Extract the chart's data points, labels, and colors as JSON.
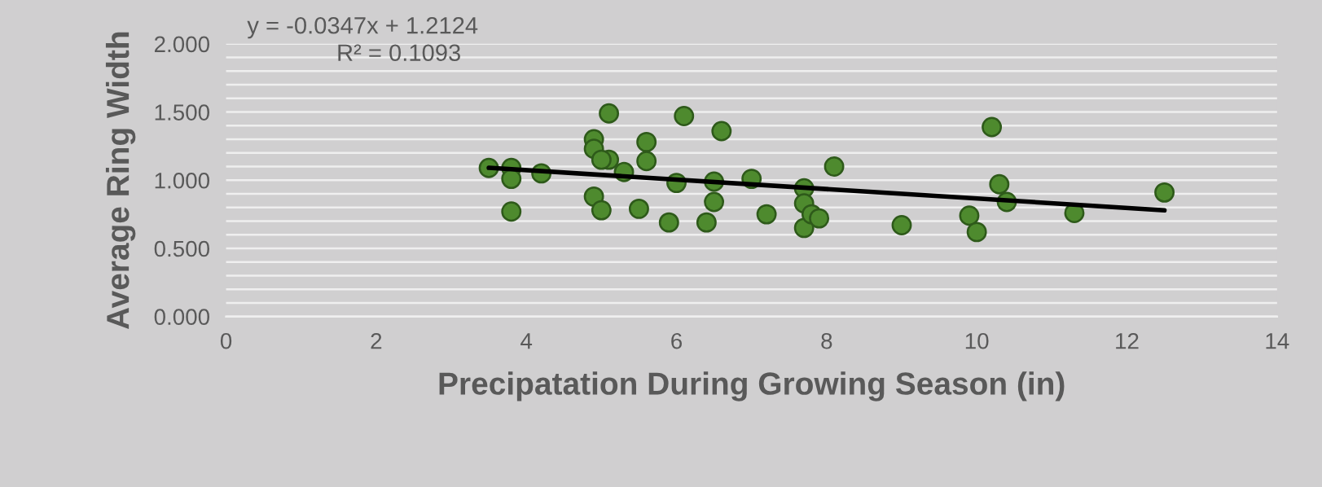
{
  "chart_data": {
    "type": "scatter",
    "xlabel": "Precipatation During Growing Season (in)",
    "ylabel": "Average Ring Width",
    "annotations": [
      "y = -0.0347x + 1.2124",
      "R² = 0.1093"
    ],
    "xlim": [
      0,
      14
    ],
    "xticks": [
      0,
      2,
      4,
      6,
      8,
      10,
      12,
      14
    ],
    "ylim": [
      0,
      2
    ],
    "yticks": [
      {
        "value": 0,
        "label": "0.000"
      },
      {
        "value": 0.1,
        "label": null
      },
      {
        "value": 0.2,
        "label": null
      },
      {
        "value": 0.3,
        "label": null
      },
      {
        "value": 0.4,
        "label": null
      },
      {
        "value": 0.5,
        "label": "0.500"
      },
      {
        "value": 0.6,
        "label": null
      },
      {
        "value": 0.7,
        "label": null
      },
      {
        "value": 0.8,
        "label": null
      },
      {
        "value": 0.9,
        "label": null
      },
      {
        "value": 1.0,
        "label": "1.000"
      },
      {
        "value": 1.1,
        "label": null
      },
      {
        "value": 1.2,
        "label": null
      },
      {
        "value": 1.3,
        "label": null
      },
      {
        "value": 1.4,
        "label": null
      },
      {
        "value": 1.5,
        "label": "1.500"
      },
      {
        "value": 1.6,
        "label": null
      },
      {
        "value": 1.7,
        "label": null
      },
      {
        "value": 1.8,
        "label": null
      },
      {
        "value": 1.9,
        "label": null
      },
      {
        "value": 2.0,
        "label": "2.000"
      }
    ],
    "grid": "y",
    "legend": false,
    "marker": "circle",
    "series": [
      {
        "color": "#4e8a2e",
        "x": [
          3.5,
          3.8,
          3.8,
          3.8,
          4.2,
          4.9,
          4.9,
          5.1,
          5.1,
          5.0,
          4.9,
          5.0,
          5.3,
          5.6,
          5.6,
          5.5,
          6.1,
          6.0,
          5.9,
          6.5,
          6.5,
          6.4,
          6.6,
          7.0,
          7.2,
          7.7,
          7.7,
          7.7,
          7.8,
          7.9,
          8.1,
          9.0,
          9.9,
          10.0,
          10.2,
          10.3,
          10.4,
          11.3,
          12.5
        ],
        "values": [
          1.09,
          1.09,
          1.01,
          0.77,
          1.05,
          1.3,
          1.23,
          1.49,
          1.15,
          1.15,
          0.88,
          0.78,
          1.06,
          1.28,
          1.14,
          0.79,
          1.47,
          0.98,
          0.69,
          0.99,
          0.84,
          0.69,
          1.36,
          1.01,
          0.75,
          0.94,
          0.83,
          0.65,
          0.75,
          0.72,
          1.1,
          0.67,
          0.74,
          0.62,
          1.39,
          0.97,
          0.84,
          0.76,
          0.91
        ]
      },
      {
        "type": "line",
        "color": "#000000",
        "marker": "none",
        "line_style": "solid",
        "x": [
          3.5,
          12.5
        ],
        "values": [
          1.091,
          0.779
        ]
      }
    ]
  }
}
